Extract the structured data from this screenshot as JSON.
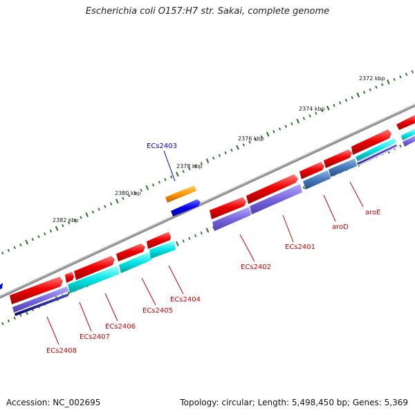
{
  "title": "Escherichia coli O157:H7 str. Sakai, complete genome",
  "footer": {
    "accession": "Accession: NC_002695",
    "summary": "Topology: circular; Length: 5,498,450 bp; Genes: 5,369"
  },
  "ruler_labels": [
    "2372 kbp",
    "2374 kbp",
    "2376 kbp",
    "2378 kbp",
    "2380 kbp",
    "2382 kbp"
  ],
  "gene_labels": [
    "ECs2403",
    "ECs2402",
    "ECs2401",
    "aroD",
    "aroE",
    "ECs2404",
    "ECs2405",
    "ECs2406",
    "ECs2407",
    "ECs2408"
  ],
  "colors": {
    "forward_cds": "#ee0000",
    "reverse_cds": "#0000ee",
    "orange": "#ff9900",
    "cyan": "#00e5e5",
    "purple": "#7766dd",
    "steel": "#4477bb",
    "navy": "#111188",
    "backbone": "#888888",
    "tick": "#1f6f1f",
    "label_red": "#cc0000",
    "label_blue": "#0000cc"
  }
}
